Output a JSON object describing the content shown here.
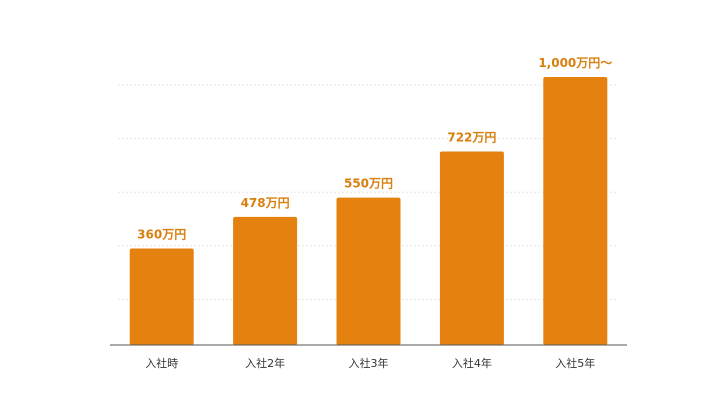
{
  "chart_data": {
    "type": "bar",
    "title": "",
    "xlabel": "",
    "ylabel": "",
    "categories": [
      "入社時",
      "入社2年",
      "入社3年",
      "入社4年",
      "入社5年"
    ],
    "values": [
      360,
      478,
      550,
      722,
      1000
    ],
    "data_labels": [
      "360万円",
      "478万円",
      "550万円",
      "722万円",
      "1,000万円～"
    ],
    "ylim": [
      0,
      1000
    ],
    "grid": true,
    "legend": "none",
    "colors": {
      "bar": "#e5820f",
      "label": "#d97f10",
      "grid": "#e6e6e6",
      "axis": "#555555"
    }
  }
}
